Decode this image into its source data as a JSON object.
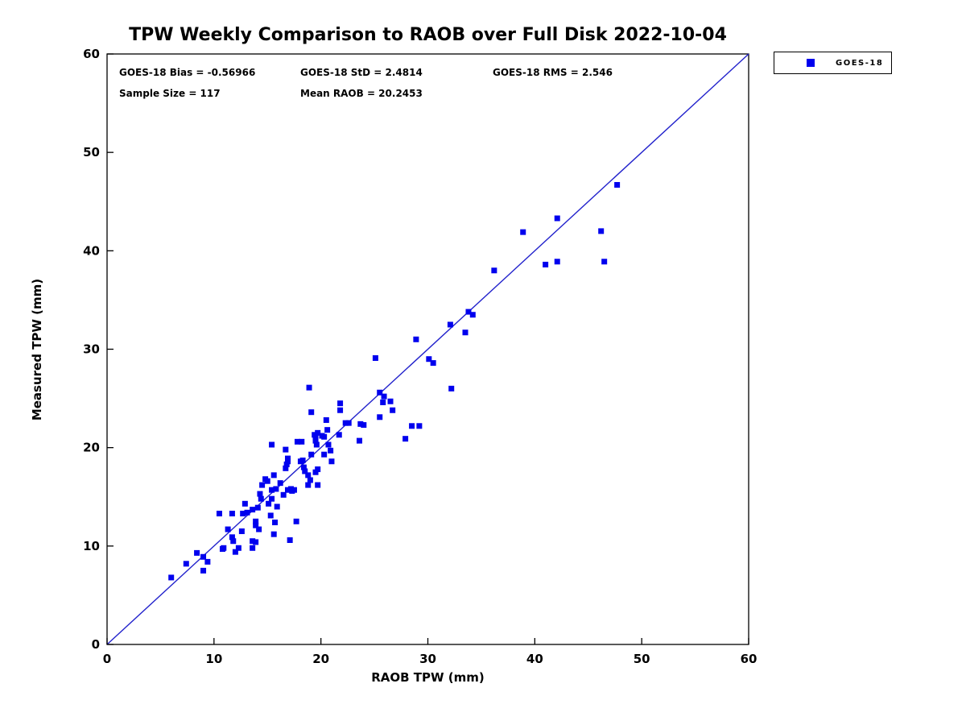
{
  "header": {
    "title": "TPW Weekly Comparison to RAOB over Full Disk 2022-10-04"
  },
  "stats": {
    "bias": "GOES-18 Bias = -0.56966",
    "std": "GOES-18 StD = 2.4814",
    "rms": "GOES-18 RMS = 2.546",
    "sample_size": "Sample Size = 117",
    "mean_raob": "Mean RAOB = 20.2453"
  },
  "legend": {
    "label": "GOES-18",
    "marker_color": "#0000EE"
  },
  "axes": {
    "xlabel": "RAOB TPW (mm)",
    "ylabel": "Measured TPW (mm)"
  },
  "colors": {
    "marker": "#0000EE",
    "reference_line": "#2222CC",
    "axis": "#000000",
    "background": "#FFFFFF"
  },
  "chart_data": {
    "type": "scatter",
    "title": "TPW Weekly Comparison to RAOB over Full Disk 2022-10-04",
    "xlabel": "RAOB TPW (mm)",
    "ylabel": "Measured TPW (mm)",
    "xlim": [
      0,
      60
    ],
    "ylim": [
      0,
      60
    ],
    "xticks": [
      0,
      10,
      20,
      30,
      40,
      50,
      60
    ],
    "yticks": [
      0,
      10,
      20,
      30,
      40,
      50,
      60
    ],
    "grid": false,
    "legend_position": "top-right-outside",
    "annotations": [
      "GOES-18 Bias = -0.56966",
      "GOES-18 StD = 2.4814",
      "GOES-18 RMS = 2.546",
      "Sample Size = 117",
      "Mean RAOB = 20.2453"
    ],
    "reference_line": {
      "x": [
        0,
        60
      ],
      "y": [
        0,
        60
      ],
      "style": "solid",
      "color": "#2222CC"
    },
    "series": [
      {
        "name": "GOES-18",
        "marker": "square",
        "color": "#0000EE",
        "sample_size": 117,
        "points": [
          [
            6.0,
            6.8
          ],
          [
            7.4,
            8.2
          ],
          [
            8.4,
            9.3
          ],
          [
            9.0,
            7.5
          ],
          [
            9.0,
            8.9
          ],
          [
            9.4,
            8.4
          ],
          [
            10.5,
            13.3
          ],
          [
            10.8,
            9.7
          ],
          [
            10.9,
            9.8
          ],
          [
            11.3,
            11.7
          ],
          [
            11.7,
            13.3
          ],
          [
            11.7,
            10.9
          ],
          [
            11.8,
            10.5
          ],
          [
            12.0,
            9.4
          ],
          [
            12.3,
            9.8
          ],
          [
            12.6,
            11.5
          ],
          [
            12.7,
            13.3
          ],
          [
            12.9,
            14.3
          ],
          [
            13.1,
            13.4
          ],
          [
            13.6,
            13.7
          ],
          [
            13.6,
            10.5
          ],
          [
            13.6,
            9.8
          ],
          [
            13.9,
            10.4
          ],
          [
            13.9,
            12.5
          ],
          [
            13.9,
            12.1
          ],
          [
            14.1,
            13.9
          ],
          [
            14.2,
            11.7
          ],
          [
            14.3,
            15.3
          ],
          [
            14.4,
            14.8
          ],
          [
            14.5,
            16.2
          ],
          [
            14.8,
            16.8
          ],
          [
            15.0,
            16.6
          ],
          [
            15.1,
            14.3
          ],
          [
            15.3,
            13.1
          ],
          [
            15.4,
            14.8
          ],
          [
            15.4,
            15.7
          ],
          [
            15.4,
            20.3
          ],
          [
            15.6,
            17.2
          ],
          [
            15.6,
            11.2
          ],
          [
            15.7,
            12.4
          ],
          [
            15.8,
            15.8
          ],
          [
            15.9,
            14.0
          ],
          [
            16.2,
            16.4
          ],
          [
            16.5,
            15.2
          ],
          [
            16.7,
            19.8
          ],
          [
            16.7,
            17.9
          ],
          [
            16.8,
            18.3
          ],
          [
            16.9,
            18.6
          ],
          [
            16.9,
            18.9
          ],
          [
            16.9,
            15.7
          ],
          [
            17.1,
            10.6
          ],
          [
            17.2,
            15.8
          ],
          [
            17.3,
            15.6
          ],
          [
            17.5,
            15.7
          ],
          [
            17.7,
            12.5
          ],
          [
            17.8,
            20.6
          ],
          [
            18.1,
            18.6
          ],
          [
            18.2,
            20.6
          ],
          [
            18.3,
            18.7
          ],
          [
            18.4,
            18.0
          ],
          [
            18.5,
            17.6
          ],
          [
            18.8,
            17.2
          ],
          [
            18.8,
            16.2
          ],
          [
            18.9,
            26.1
          ],
          [
            19.0,
            16.7
          ],
          [
            19.1,
            23.6
          ],
          [
            19.1,
            19.3
          ],
          [
            19.4,
            21.3
          ],
          [
            19.5,
            21.0
          ],
          [
            19.5,
            17.5
          ],
          [
            19.5,
            20.7
          ],
          [
            19.6,
            20.3
          ],
          [
            19.7,
            17.8
          ],
          [
            19.7,
            21.5
          ],
          [
            19.7,
            16.2
          ],
          [
            20.1,
            21.2
          ],
          [
            20.3,
            21.1
          ],
          [
            20.3,
            19.3
          ],
          [
            20.5,
            22.8
          ],
          [
            20.6,
            21.8
          ],
          [
            20.7,
            20.3
          ],
          [
            20.9,
            19.7
          ],
          [
            21.0,
            18.6
          ],
          [
            21.7,
            21.3
          ],
          [
            21.8,
            24.5
          ],
          [
            21.8,
            23.8
          ],
          [
            22.3,
            22.5
          ],
          [
            22.6,
            22.5
          ],
          [
            23.6,
            20.7
          ],
          [
            23.7,
            22.4
          ],
          [
            24.0,
            22.3
          ],
          [
            25.1,
            29.1
          ],
          [
            25.5,
            25.6
          ],
          [
            25.5,
            23.1
          ],
          [
            25.8,
            24.6
          ],
          [
            25.9,
            25.2
          ],
          [
            26.5,
            24.7
          ],
          [
            26.7,
            23.8
          ],
          [
            27.9,
            20.9
          ],
          [
            28.5,
            22.2
          ],
          [
            28.9,
            31.0
          ],
          [
            29.2,
            22.2
          ],
          [
            30.1,
            29.0
          ],
          [
            30.5,
            28.6
          ],
          [
            32.1,
            32.5
          ],
          [
            32.2,
            26.0
          ],
          [
            33.5,
            31.7
          ],
          [
            33.8,
            33.8
          ],
          [
            34.2,
            33.5
          ],
          [
            36.2,
            38.0
          ],
          [
            38.9,
            41.9
          ],
          [
            41.0,
            38.6
          ],
          [
            42.1,
            43.3
          ],
          [
            42.1,
            38.9
          ],
          [
            46.2,
            42.0
          ],
          [
            46.5,
            38.9
          ],
          [
            47.7,
            46.7
          ]
        ]
      }
    ]
  }
}
